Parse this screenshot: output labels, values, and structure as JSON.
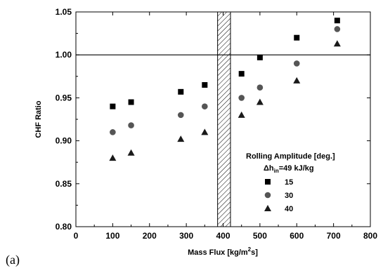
{
  "panel_label": "(a)",
  "chart_data": {
    "type": "scatter",
    "title": "",
    "xlabel": "Mass Flux [kg/m2s]",
    "xlabel_parts": {
      "main": "Mass Flux [kg/m",
      "sup": "2",
      "tail": "s]"
    },
    "ylabel": "CHF Ratio",
    "xlim": [
      0,
      800
    ],
    "ylim": [
      0.8,
      1.05
    ],
    "x_ticks": [
      0,
      100,
      200,
      300,
      400,
      500,
      600,
      700,
      800
    ],
    "y_ticks": [
      "0.80",
      "0.85",
      "0.90",
      "0.95",
      "1.00",
      "1.05"
    ],
    "reference_line_y": 1.0,
    "hatched_band_x": [
      385,
      420
    ],
    "legend": {
      "title": "Rolling Amplitude [deg.]",
      "subtitle_parts": {
        "delta": "Δh",
        "sub": "in",
        "rest": "=49 kJ/kg"
      },
      "placement": "lower-right"
    },
    "series": [
      {
        "name": "15",
        "marker": "square",
        "color": "#000000",
        "x": [
          100,
          150,
          285,
          350,
          450,
          500,
          600,
          710
        ],
        "y": [
          0.94,
          0.945,
          0.957,
          0.965,
          0.978,
          0.997,
          1.02,
          1.04
        ]
      },
      {
        "name": "30",
        "marker": "circle",
        "color": "#555555",
        "x": [
          100,
          150,
          285,
          350,
          450,
          500,
          600,
          710
        ],
        "y": [
          0.91,
          0.918,
          0.93,
          0.94,
          0.95,
          0.962,
          0.99,
          1.03
        ]
      },
      {
        "name": "40",
        "marker": "triangle",
        "color": "#1a1a1a",
        "x": [
          100,
          150,
          285,
          350,
          450,
          500,
          600,
          710
        ],
        "y": [
          0.88,
          0.886,
          0.902,
          0.91,
          0.93,
          0.945,
          0.97,
          1.013
        ]
      }
    ]
  }
}
